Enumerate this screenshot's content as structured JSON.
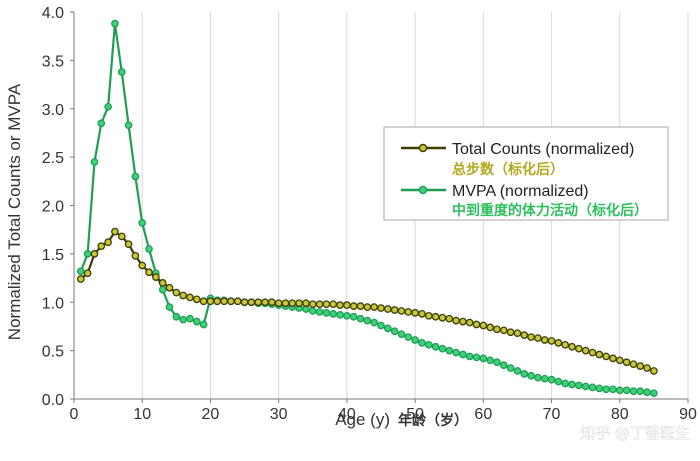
{
  "chart_data": {
    "type": "line",
    "title": "",
    "xlabel": "Age (y)",
    "xlabel_cn": "年龄（岁）",
    "ylabel": "Normalized Total Counts or MVPA",
    "xlim": [
      0,
      90
    ],
    "ylim": [
      0.0,
      4.0
    ],
    "x_ticks": [
      "0",
      "10",
      "20",
      "30",
      "40",
      "50",
      "60",
      "70",
      "80",
      "90"
    ],
    "y_ticks": [
      "0.0",
      "0.5",
      "1.0",
      "1.5",
      "2.0",
      "2.5",
      "3.0",
      "3.5",
      "4.0"
    ],
    "grid": "vertical",
    "legend_position": "center-right",
    "colors": {
      "total_line": "#3d3d05",
      "total_marker": "#c8c83a",
      "mvpa_line": "#1f9e55",
      "mvpa_marker": "#3fd07a",
      "grid": "#d9d9d9",
      "axis": "#777777"
    },
    "series": [
      {
        "name": "Total Counts (normalized)",
        "name_cn": "总步数（标化后）",
        "x": [
          1,
          2,
          3,
          4,
          5,
          6,
          7,
          8,
          9,
          10,
          11,
          12,
          13,
          14,
          15,
          16,
          17,
          18,
          19,
          20,
          21,
          22,
          23,
          24,
          25,
          26,
          27,
          28,
          29,
          30,
          31,
          32,
          33,
          34,
          35,
          36,
          37,
          38,
          39,
          40,
          41,
          42,
          43,
          44,
          45,
          46,
          47,
          48,
          49,
          50,
          51,
          52,
          53,
          54,
          55,
          56,
          57,
          58,
          59,
          60,
          61,
          62,
          63,
          64,
          65,
          66,
          67,
          68,
          69,
          70,
          71,
          72,
          73,
          74,
          75,
          76,
          77,
          78,
          79,
          80,
          81,
          82,
          83,
          84,
          85
        ],
        "values": [
          1.24,
          1.3,
          1.5,
          1.58,
          1.62,
          1.73,
          1.68,
          1.6,
          1.48,
          1.38,
          1.31,
          1.26,
          1.2,
          1.15,
          1.1,
          1.07,
          1.05,
          1.03,
          1.01,
          1.01,
          1.01,
          1.01,
          1.01,
          1.01,
          1.0,
          1.0,
          1.0,
          1.0,
          1.0,
          0.99,
          0.99,
          0.99,
          0.99,
          0.99,
          0.98,
          0.98,
          0.98,
          0.98,
          0.97,
          0.97,
          0.96,
          0.96,
          0.95,
          0.95,
          0.94,
          0.93,
          0.92,
          0.91,
          0.9,
          0.89,
          0.88,
          0.86,
          0.85,
          0.84,
          0.83,
          0.81,
          0.8,
          0.79,
          0.77,
          0.76,
          0.74,
          0.72,
          0.71,
          0.69,
          0.68,
          0.66,
          0.64,
          0.63,
          0.61,
          0.6,
          0.58,
          0.56,
          0.54,
          0.52,
          0.5,
          0.48,
          0.46,
          0.44,
          0.42,
          0.4,
          0.38,
          0.36,
          0.34,
          0.32,
          0.29
        ]
      },
      {
        "name": "MVPA (normalized)",
        "name_cn": "中到重度的体力活动（标化后）",
        "x": [
          1,
          2,
          3,
          4,
          5,
          6,
          7,
          8,
          9,
          10,
          11,
          12,
          13,
          14,
          15,
          16,
          17,
          18,
          19,
          20,
          21,
          22,
          23,
          24,
          25,
          26,
          27,
          28,
          29,
          30,
          31,
          32,
          33,
          34,
          35,
          36,
          37,
          38,
          39,
          40,
          41,
          42,
          43,
          44,
          45,
          46,
          47,
          48,
          49,
          50,
          51,
          52,
          53,
          54,
          55,
          56,
          57,
          58,
          59,
          60,
          61,
          62,
          63,
          64,
          65,
          66,
          67,
          68,
          69,
          70,
          71,
          72,
          73,
          74,
          75,
          76,
          77,
          78,
          79,
          80,
          81,
          82,
          83,
          84,
          85
        ],
        "values": [
          1.32,
          1.5,
          2.45,
          2.85,
          3.02,
          3.88,
          3.38,
          2.83,
          2.3,
          1.82,
          1.55,
          1.3,
          1.13,
          0.95,
          0.85,
          0.82,
          0.83,
          0.8,
          0.77,
          1.04,
          1.02,
          1.02,
          1.01,
          1.01,
          1.0,
          1.0,
          0.99,
          0.99,
          0.98,
          0.97,
          0.96,
          0.95,
          0.94,
          0.93,
          0.91,
          0.9,
          0.89,
          0.88,
          0.87,
          0.86,
          0.85,
          0.83,
          0.81,
          0.79,
          0.76,
          0.73,
          0.7,
          0.67,
          0.64,
          0.61,
          0.58,
          0.56,
          0.54,
          0.52,
          0.5,
          0.48,
          0.46,
          0.44,
          0.43,
          0.42,
          0.4,
          0.38,
          0.35,
          0.32,
          0.29,
          0.26,
          0.24,
          0.22,
          0.21,
          0.2,
          0.18,
          0.16,
          0.15,
          0.14,
          0.13,
          0.12,
          0.11,
          0.1,
          0.1,
          0.09,
          0.09,
          0.08,
          0.08,
          0.07,
          0.06
        ]
      }
    ]
  },
  "watermark": {
    "text": "知乎 @丁香医生"
  }
}
